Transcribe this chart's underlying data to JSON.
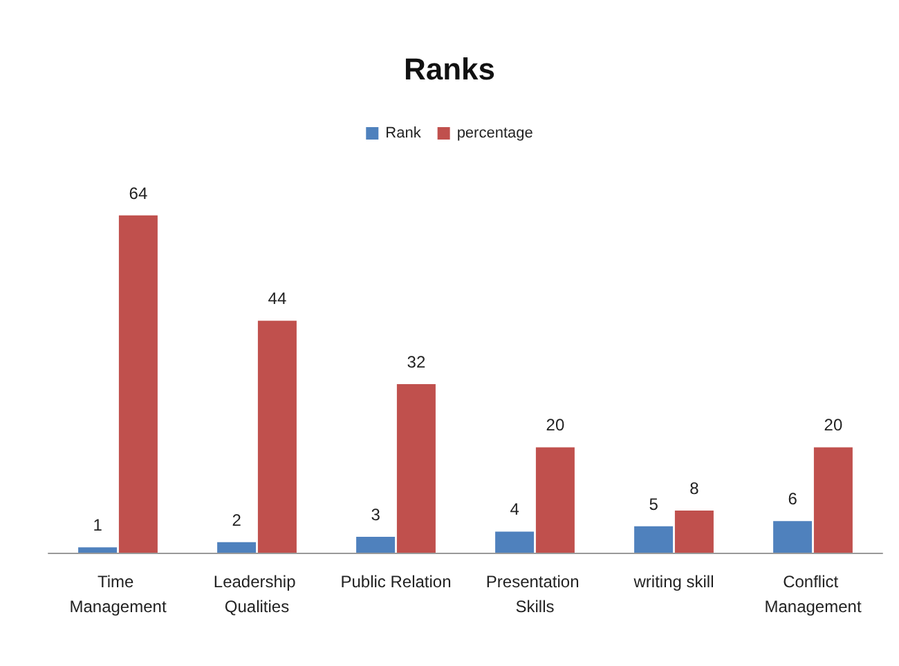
{
  "chart_data": {
    "type": "bar",
    "title": "Ranks",
    "categories": [
      "Time Management",
      "Leadership Qualities",
      "Public Relation",
      "Presentation Skills",
      "writing skill",
      "Conflict Management"
    ],
    "series": [
      {
        "name": "Rank",
        "color": "#4f81bd",
        "values": [
          1,
          2,
          3,
          4,
          5,
          6
        ]
      },
      {
        "name": "percentage",
        "color": "#c0504d",
        "values": [
          64,
          44,
          32,
          20,
          8,
          20
        ]
      }
    ],
    "data_labels": true,
    "legend": "top",
    "grid": false
  }
}
